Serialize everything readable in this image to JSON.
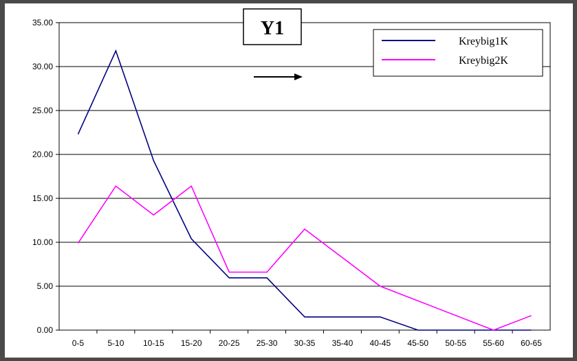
{
  "chart_data": {
    "type": "line",
    "title": "Y1",
    "categories": [
      "0-5",
      "5-10",
      "10-15",
      "15-20",
      "20-25",
      "25-30",
      "30-35",
      "35-40",
      "40-45",
      "45-50",
      "50-55",
      "55-60",
      "60-65"
    ],
    "series": [
      {
        "name": "Kreybig1K",
        "color": "#000080",
        "values": [
          22.3,
          31.8,
          19.3,
          10.4,
          5.95,
          5.95,
          1.5,
          1.5,
          1.5,
          0,
          0,
          0,
          0
        ]
      },
      {
        "name": "Kreybig2K",
        "color": "#ff00ff",
        "values": [
          9.9,
          16.4,
          13.1,
          16.4,
          6.6,
          6.6,
          11.5,
          null,
          5.0,
          null,
          null,
          0,
          1.65
        ]
      }
    ],
    "yticks": [
      "0.00",
      "5.00",
      "10.00",
      "15.00",
      "20.00",
      "25.00",
      "30.00",
      "35.00"
    ],
    "ylim": [
      0,
      35
    ],
    "grid": true,
    "legend": "top-right",
    "annotation": "arrow-right"
  }
}
